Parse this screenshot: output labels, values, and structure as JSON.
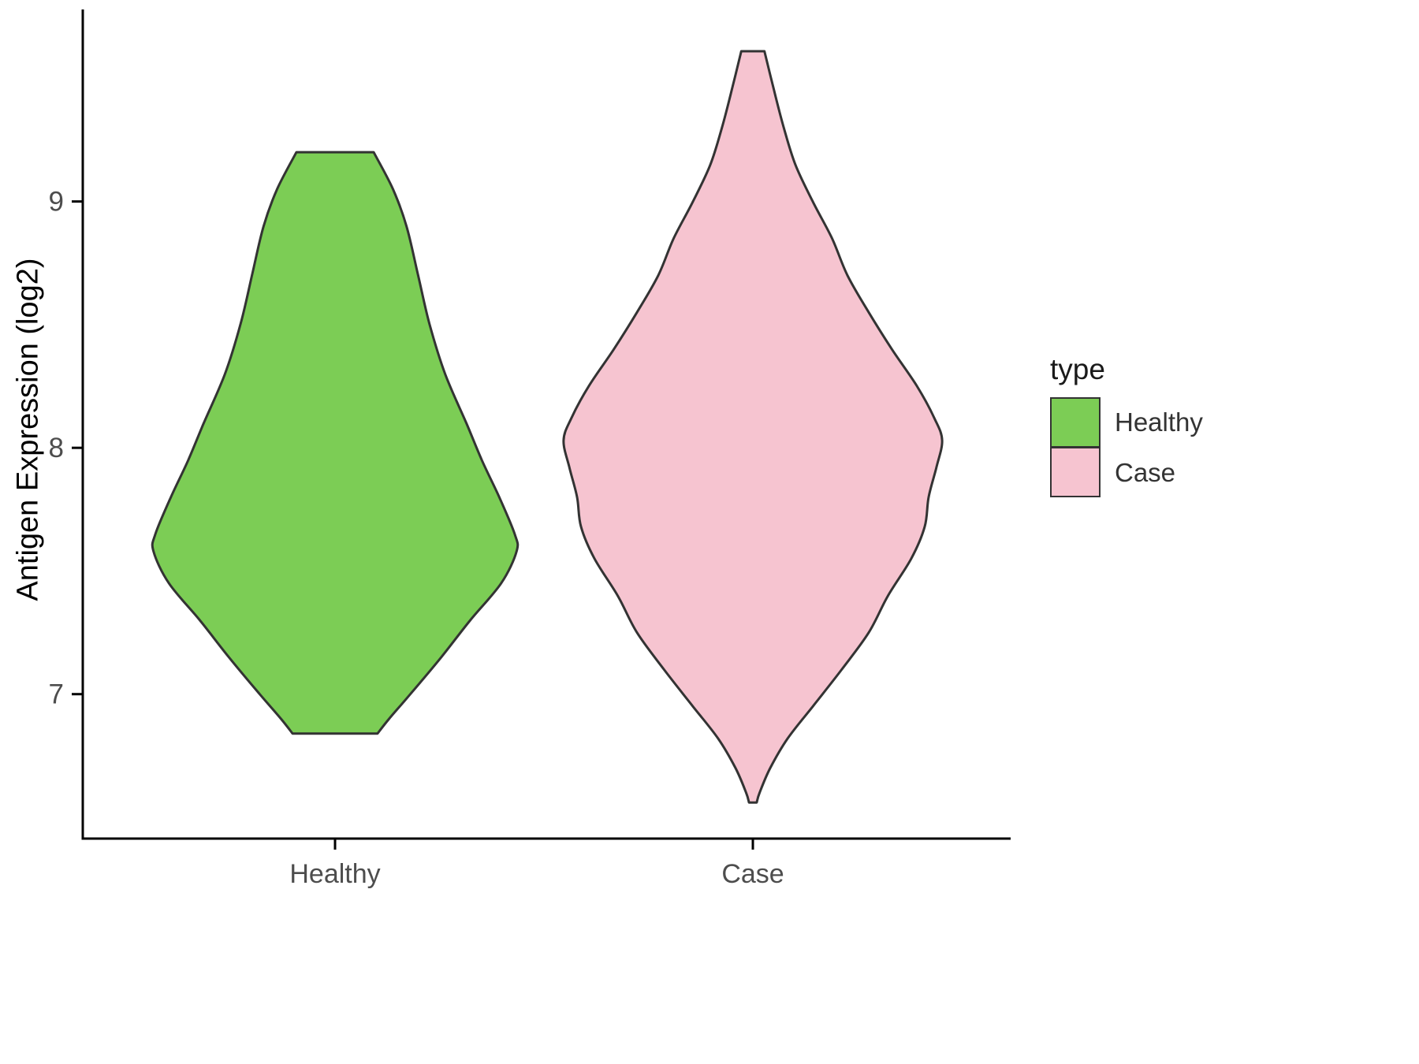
{
  "chart_data": {
    "type": "violin",
    "title": "",
    "xlabel": "",
    "ylabel": "Antigen Expression (log2)",
    "categories": [
      "Healthy",
      "Case"
    ],
    "y_ticks": [
      7,
      8,
      9
    ],
    "ylim": [
      6.42,
      9.77
    ],
    "grid": false,
    "legend": {
      "title": "type",
      "position": "right",
      "entries": [
        {
          "label": "Healthy",
          "color": "#7CCD55"
        },
        {
          "label": "Case",
          "color": "#F6C4D0"
        }
      ]
    },
    "colors": {
      "axis_line": "#000000",
      "axis_text": "#4D4D4D",
      "violin_outline": "#333333"
    },
    "series": [
      {
        "name": "Healthy",
        "color": "#7CCD55",
        "profile": [
          [
            9.2,
            0.2
          ],
          [
            9.05,
            0.3
          ],
          [
            8.9,
            0.37
          ],
          [
            8.7,
            0.43
          ],
          [
            8.5,
            0.49
          ],
          [
            8.3,
            0.57
          ],
          [
            8.1,
            0.68
          ],
          [
            7.95,
            0.76
          ],
          [
            7.8,
            0.85
          ],
          [
            7.65,
            0.93
          ],
          [
            7.58,
            0.94
          ],
          [
            7.45,
            0.86
          ],
          [
            7.3,
            0.7
          ],
          [
            7.15,
            0.55
          ],
          [
            7.0,
            0.39
          ],
          [
            6.9,
            0.28
          ],
          [
            6.84,
            0.22
          ]
        ]
      },
      {
        "name": "Case",
        "color": "#F6C4D0",
        "profile": [
          [
            9.61,
            0.06
          ],
          [
            9.45,
            0.11
          ],
          [
            9.3,
            0.16
          ],
          [
            9.15,
            0.22
          ],
          [
            9.0,
            0.31
          ],
          [
            8.85,
            0.41
          ],
          [
            8.7,
            0.49
          ],
          [
            8.55,
            0.6
          ],
          [
            8.4,
            0.72
          ],
          [
            8.25,
            0.85
          ],
          [
            8.12,
            0.94
          ],
          [
            8.03,
            0.98
          ],
          [
            7.92,
            0.95
          ],
          [
            7.8,
            0.91
          ],
          [
            7.68,
            0.89
          ],
          [
            7.55,
            0.82
          ],
          [
            7.4,
            0.7
          ],
          [
            7.25,
            0.6
          ],
          [
            7.1,
            0.46
          ],
          [
            6.95,
            0.31
          ],
          [
            6.82,
            0.18
          ],
          [
            6.7,
            0.09
          ],
          [
            6.6,
            0.035
          ],
          [
            6.56,
            0.02
          ]
        ]
      }
    ]
  }
}
